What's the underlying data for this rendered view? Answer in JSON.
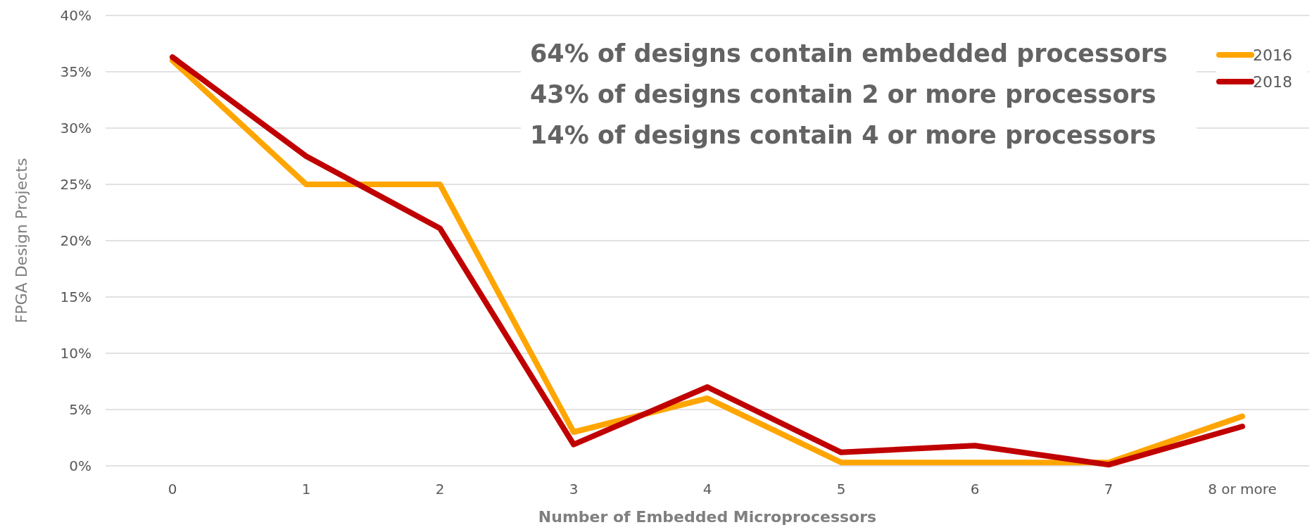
{
  "chart_data": {
    "type": "line",
    "xlabel": "Number of Embedded Microprocessors",
    "ylabel": "FPGA Design Projects",
    "categories": [
      "0",
      "1",
      "2",
      "3",
      "4",
      "5",
      "6",
      "7",
      "8 or more"
    ],
    "series": [
      {
        "name": "2016",
        "color": "#ffa500",
        "values": [
          36,
          25,
          25,
          3,
          6,
          0.3,
          0.3,
          0.3,
          4.4
        ]
      },
      {
        "name": "2018",
        "color": "#c00000",
        "values": [
          36.3,
          27.5,
          21.1,
          1.9,
          7,
          1.2,
          1.8,
          0.1,
          3.5
        ]
      }
    ],
    "ylim": [
      0,
      40
    ],
    "yticks": [
      {
        "value": 0,
        "label": "0%"
      },
      {
        "value": 5,
        "label": "5%"
      },
      {
        "value": 10,
        "label": "10%"
      },
      {
        "value": 15,
        "label": "15%"
      },
      {
        "value": 20,
        "label": "20%"
      },
      {
        "value": 25,
        "label": "25%"
      },
      {
        "value": 30,
        "label": "30%"
      },
      {
        "value": 35,
        "label": "35%"
      },
      {
        "value": 40,
        "label": "40%"
      }
    ],
    "grid": "y",
    "legend": "top right",
    "marker": "none",
    "line_style": "solid",
    "annotations": [
      "64% of designs contain embedded processors",
      "43% of designs contain 2 or more processors",
      "14% of designs contain 4 or more processors"
    ]
  }
}
